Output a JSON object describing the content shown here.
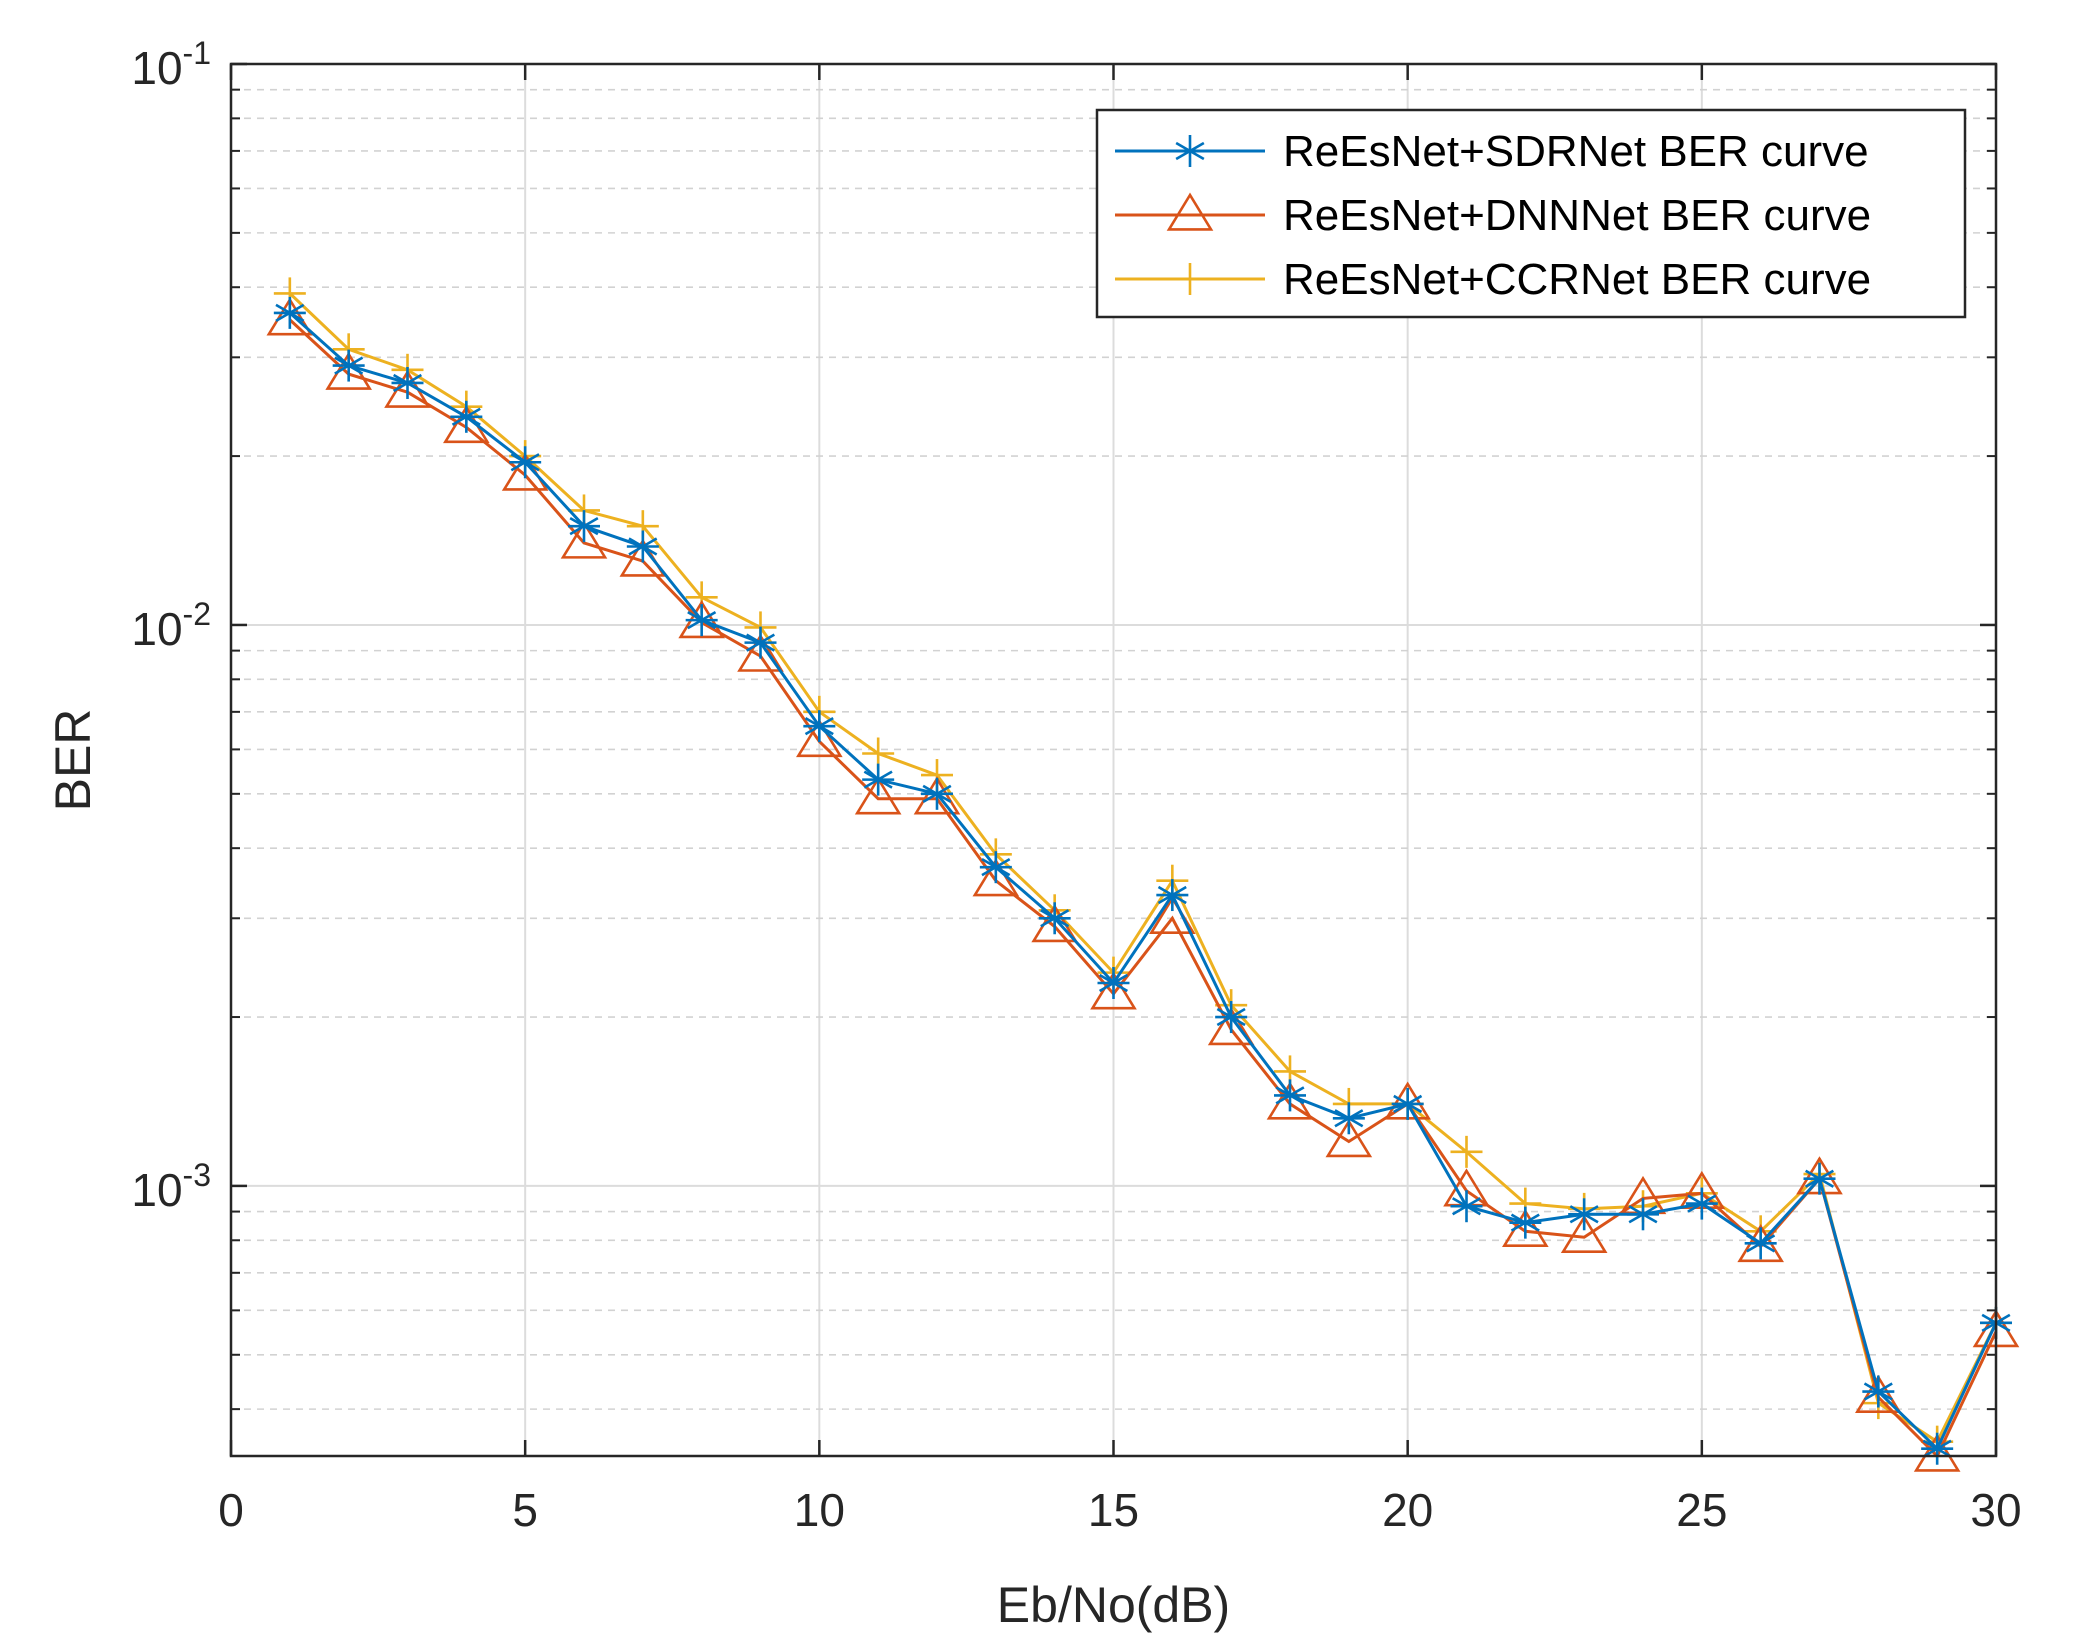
{
  "chart_data": {
    "type": "line",
    "xlabel": "Eb/No(dB)",
    "ylabel": "BER",
    "xlim": [
      0,
      30
    ],
    "ylim": [
      0.00033,
      0.1
    ],
    "yscale": "log",
    "grid": true,
    "legend_position": "top-right",
    "x_ticks": [
      {
        "value": 0,
        "label": "0"
      },
      {
        "value": 5,
        "label": "5"
      },
      {
        "value": 10,
        "label": "10"
      },
      {
        "value": 15,
        "label": "15"
      },
      {
        "value": 20,
        "label": "20"
      },
      {
        "value": 25,
        "label": "25"
      },
      {
        "value": 30,
        "label": "30"
      }
    ],
    "y_ticks": [
      {
        "value": 0.1,
        "base": "10",
        "exp": "-1"
      },
      {
        "value": 0.01,
        "base": "10",
        "exp": "-2"
      },
      {
        "value": 0.001,
        "base": "10",
        "exp": "-3"
      }
    ],
    "x": [
      1,
      2,
      3,
      4,
      5,
      6,
      7,
      8,
      9,
      10,
      11,
      12,
      13,
      14,
      15,
      16,
      17,
      18,
      19,
      20,
      21,
      22,
      23,
      24,
      25,
      26,
      27,
      28,
      29,
      30
    ],
    "series": [
      {
        "name": "ReEsNet+SDRNet BER curve",
        "color": "#0072BD",
        "marker": "asterisk",
        "values": [
          0.036,
          0.029,
          0.027,
          0.0235,
          0.0195,
          0.015,
          0.0138,
          0.0102,
          0.0093,
          0.0066,
          0.0053,
          0.005,
          0.0037,
          0.003,
          0.0023,
          0.0033,
          0.002,
          0.00145,
          0.00132,
          0.0014,
          0.00092,
          0.00086,
          0.00089,
          0.00089,
          0.00093,
          0.00079,
          0.00103,
          0.00043,
          0.00034,
          0.00057
        ]
      },
      {
        "name": "ReEsNet+DNNNet BER curve",
        "color": "#D95319",
        "marker": "triangle",
        "values": [
          0.035,
          0.028,
          0.026,
          0.0225,
          0.0185,
          0.014,
          0.013,
          0.0101,
          0.0088,
          0.0062,
          0.0049,
          0.0049,
          0.0035,
          0.0029,
          0.0022,
          0.003,
          0.0019,
          0.0014,
          0.0012,
          0.0014,
          0.00098,
          0.00083,
          0.00081,
          0.00095,
          0.00097,
          0.00078,
          0.00103,
          0.00042,
          0.00033,
          0.00055
        ]
      },
      {
        "name": "ReEsNet+CCRNet BER curve",
        "color": "#EDB120",
        "marker": "plus",
        "values": [
          0.039,
          0.031,
          0.0285,
          0.0245,
          0.02,
          0.016,
          0.015,
          0.0112,
          0.0099,
          0.007,
          0.0059,
          0.0054,
          0.0039,
          0.0031,
          0.0024,
          0.0035,
          0.0021,
          0.0016,
          0.0014,
          0.0014,
          0.00115,
          0.00093,
          0.00091,
          0.00092,
          0.00097,
          0.00083,
          0.00105,
          0.00041,
          0.00035,
          0.00057
        ]
      }
    ]
  }
}
